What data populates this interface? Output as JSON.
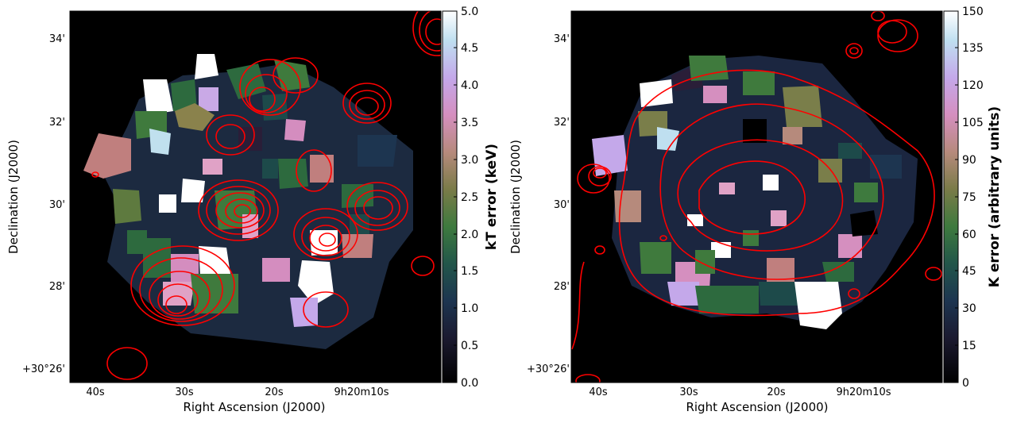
{
  "panels": [
    {
      "id": "left",
      "colorbar": {
        "label": "kT error (keV)",
        "ticks": [
          "0.0",
          "0.5",
          "1.0",
          "1.5",
          "2.0",
          "2.5",
          "3.0",
          "3.5",
          "4.0",
          "4.5",
          "5.0"
        ],
        "min": 0,
        "max": 5
      },
      "x_ticks": [
        "40s",
        "30s",
        "20s",
        "9h20m10s"
      ],
      "y_ticks": [
        "34'",
        "32'",
        "30'",
        "28'",
        "+30°26'"
      ],
      "xlabel": "Right Ascension (J2000)",
      "ylabel": "Declination (J2000)"
    },
    {
      "id": "right",
      "colorbar": {
        "label": "K error (arbitrary units)",
        "ticks": [
          "0",
          "15",
          "30",
          "45",
          "60",
          "75",
          "90",
          "105",
          "120",
          "135",
          "150"
        ],
        "min": 0,
        "max": 150
      },
      "x_ticks": [
        "40s",
        "30s",
        "20s",
        "9h20m10s"
      ],
      "y_ticks": [
        "34'",
        "32'",
        "30'",
        "28'",
        "+30°26'"
      ],
      "xlabel": "Right Ascension (J2000)",
      "ylabel": "Declination (J2000)"
    }
  ],
  "colors": {
    "background": "#000000",
    "contour": "#ff0000",
    "colormap": [
      "#000000",
      "#1b2640",
      "#1f4a4a",
      "#3b7240",
      "#7a7e4a",
      "#b98f82",
      "#d68fc0",
      "#c7a7e8",
      "#bfdcf0",
      "#ffffff"
    ]
  }
}
